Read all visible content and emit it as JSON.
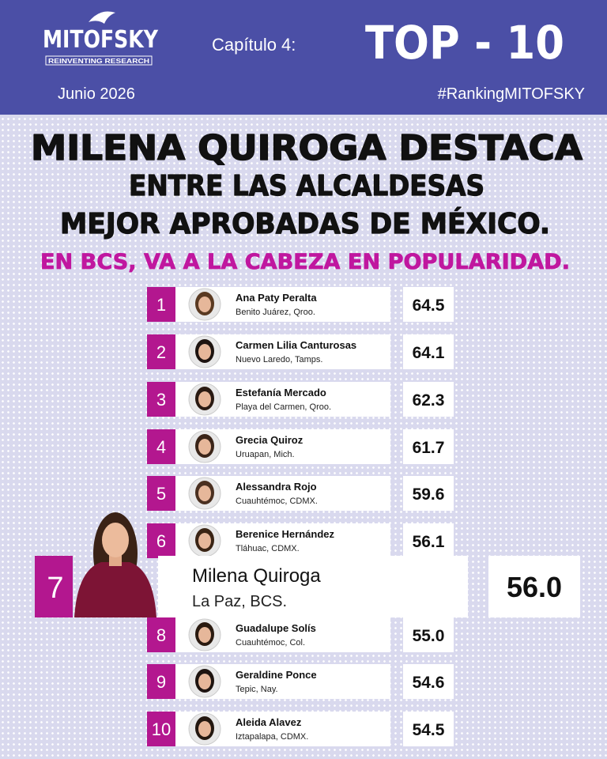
{
  "header": {
    "logo": "MITOFSKY",
    "tagline": "REINVENTING RESEARCH",
    "chapter": "Capítulo 4:",
    "top": "TOP - 10",
    "date": "Junio 2026",
    "hashtag": "#RankingMITOFSKY"
  },
  "headline": {
    "lines": [
      "MILENA QUIROGA DESTACA",
      "ENTRE LAS ALCALDESAS",
      "MEJOR APROBADAS DE MÉXICO."
    ],
    "subtitle": "EN BCS, VA A LA CABEZA EN POPULARIDAD."
  },
  "ranking": [
    {
      "rank": "1",
      "name": "Ana Paty Peralta",
      "place": "Benito Juárez, Qroo.",
      "score": "64.5"
    },
    {
      "rank": "2",
      "name": "Carmen Lilia Canturosas",
      "place": "Nuevo Laredo, Tamps.",
      "score": "64.1"
    },
    {
      "rank": "3",
      "name": "Estefanía Mercado",
      "place": "Playa del Carmen, Qroo.",
      "score": "62.3"
    },
    {
      "rank": "4",
      "name": "Grecia Quiroz",
      "place": "Uruapan, Mich.",
      "score": "61.7"
    },
    {
      "rank": "5",
      "name": "Alessandra Rojo",
      "place": "Cuauhtémoc, CDMX.",
      "score": "59.6"
    },
    {
      "rank": "6",
      "name": "Berenice Hernández",
      "place": "Tláhuac, CDMX.",
      "score": "56.1"
    },
    {
      "rank": "7",
      "name": "Milena Quiroga",
      "place": "La Paz, BCS.",
      "score": "56.0"
    },
    {
      "rank": "8",
      "name": "Guadalupe Solís",
      "place": "Cuauhtémoc, Col.",
      "score": "55.0"
    },
    {
      "rank": "9",
      "name": "Geraldine Ponce",
      "place": "Tepic, Nay.",
      "score": "54.6"
    },
    {
      "rank": "10",
      "name": "Aleida Alavez",
      "place": "Iztapalapa, CDMX.",
      "score": "54.5"
    }
  ]
}
